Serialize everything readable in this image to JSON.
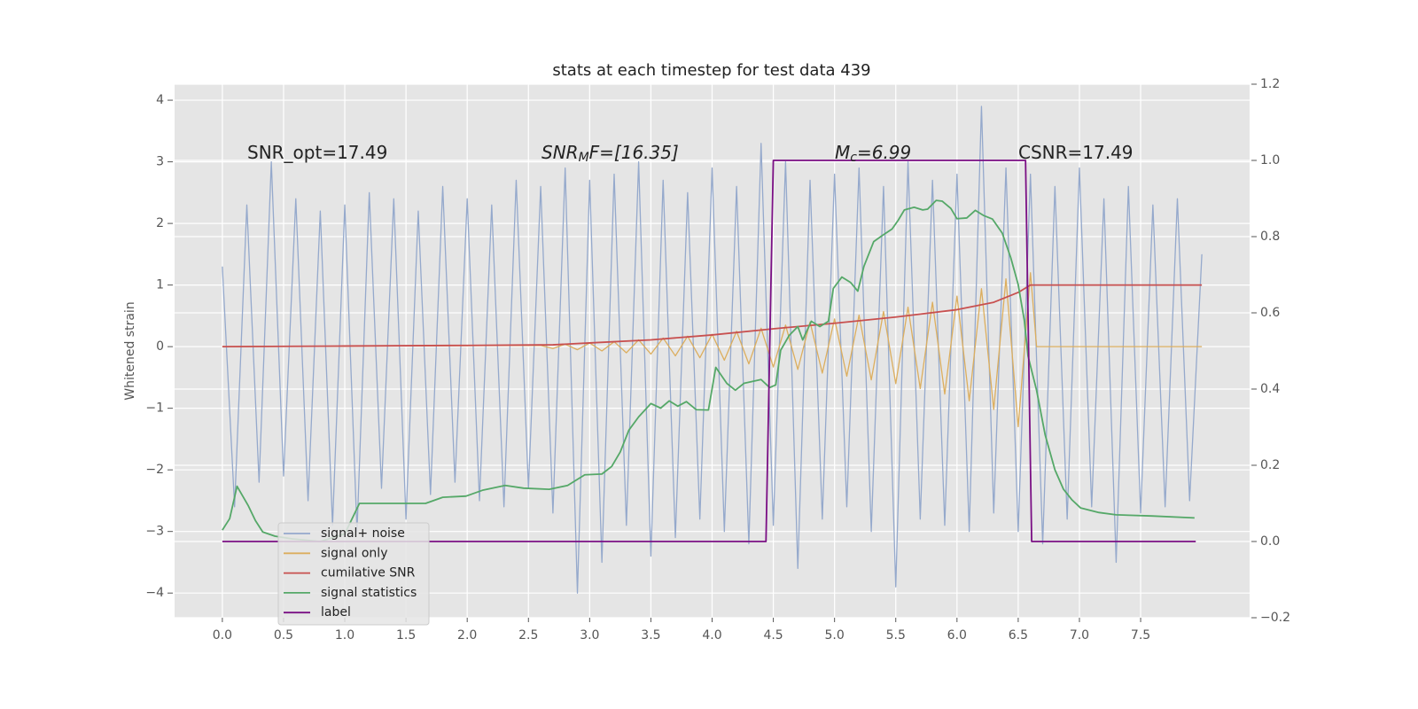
{
  "chart_data": {
    "type": "line",
    "title": "stats at each timestep for test data 439",
    "ylabel": "Whitened strain",
    "annotations": [
      [
        "SNR_opt=17.49"
      ],
      [
        "SNR",
        "M",
        "F=[16.35]"
      ],
      [
        "M",
        "c",
        "=6.99"
      ],
      [
        "CSNR=17.49"
      ]
    ],
    "xlim": [
      -0.39,
      8.39
    ],
    "ylim": [
      -4.4,
      4.26
    ],
    "y2lim": [
      -0.2,
      1.2
    ],
    "xticks": [
      {
        "value": 0,
        "label": "0.0"
      },
      0.5,
      {
        "value": 1,
        "label": "1.0"
      },
      1.5,
      {
        "value": 2,
        "label": "2.0"
      },
      2.5,
      {
        "value": 3,
        "label": "3.0"
      },
      3.5,
      {
        "value": 4,
        "label": "4.0"
      },
      4.5,
      {
        "value": 5,
        "label": "5.0"
      },
      5.5,
      {
        "value": 6,
        "label": "6.0"
      },
      6.5,
      {
        "value": 7,
        "label": "7.0"
      },
      7.5
    ],
    "yticks": [
      {
        "value": -4,
        "label": "−4"
      },
      {
        "value": -3,
        "label": "−3"
      },
      {
        "value": -2,
        "label": "−2"
      },
      {
        "value": -1,
        "label": "−1"
      },
      0,
      1,
      2,
      3,
      4
    ],
    "y2ticks": [
      {
        "value": -0.2,
        "label": "−0.2"
      },
      {
        "value": 0,
        "label": "0.0"
      },
      0.2,
      0.4,
      0.6,
      0.8,
      {
        "value": 1,
        "label": "1.0"
      },
      1.2
    ],
    "grid": true,
    "legend": "lower left",
    "series": [
      {
        "name": "signal+ noise",
        "color": "#95a9cc",
        "x": [
          0,
          0.1,
          0.2,
          0.3,
          0.4,
          0.5,
          0.6,
          0.7,
          0.8,
          0.9,
          1.0,
          1.1,
          1.2,
          1.3,
          1.4,
          1.5,
          1.6,
          1.7,
          1.8,
          1.9,
          2.0,
          2.1,
          2.2,
          2.3,
          2.4,
          2.5,
          2.6,
          2.7,
          2.8,
          2.9,
          3.0,
          3.1,
          3.2,
          3.3,
          3.4,
          3.5,
          3.6,
          3.7,
          3.8,
          3.9,
          4.0,
          4.1,
          4.2,
          4.3,
          4.4,
          4.5,
          4.6,
          4.7,
          4.8,
          4.9,
          5.0,
          5.1,
          5.2,
          5.3,
          5.4,
          5.5,
          5.6,
          5.7,
          5.8,
          5.9,
          6.0,
          6.1,
          6.2,
          6.3,
          6.4,
          6.5,
          6.6,
          6.7,
          6.8,
          6.9,
          7.0,
          7.1,
          7.2,
          7.3,
          7.4,
          7.5,
          7.6,
          7.7,
          7.8,
          7.9,
          8.0
        ],
        "values": [
          1.3,
          -2.6,
          2.3,
          -2.2,
          3.0,
          -2.1,
          2.4,
          -2.5,
          2.2,
          -2.9,
          2.3,
          -3.0,
          2.5,
          -2.3,
          2.4,
          -2.8,
          2.2,
          -2.4,
          2.6,
          -2.2,
          2.4,
          -2.5,
          2.3,
          -2.6,
          2.7,
          -2.3,
          2.6,
          -2.7,
          2.9,
          -4.0,
          2.7,
          -3.5,
          2.8,
          -2.9,
          3.0,
          -3.4,
          2.7,
          -3.1,
          2.5,
          -2.8,
          2.9,
          -3.0,
          2.6,
          -3.2,
          3.3,
          -2.9,
          3.0,
          -3.6,
          2.7,
          -2.8,
          2.8,
          -2.6,
          2.9,
          -3.0,
          2.6,
          -3.9,
          3.0,
          -2.8,
          2.7,
          -2.9,
          2.8,
          -3.0,
          3.9,
          -2.7,
          2.9,
          -3.0,
          2.8,
          -3.2,
          2.6,
          -2.8,
          2.9,
          -2.6,
          2.4,
          -3.5,
          2.6,
          -2.7,
          2.3,
          -2.6,
          2.4,
          -2.5,
          1.5
        ]
      },
      {
        "name": "signal only",
        "color": "#dcae5e",
        "x": [
          0,
          2.6,
          2.7,
          2.8,
          2.9,
          3.0,
          3.1,
          3.2,
          3.3,
          3.4,
          3.5,
          3.6,
          3.7,
          3.8,
          3.9,
          4.0,
          4.1,
          4.2,
          4.3,
          4.4,
          4.5,
          4.6,
          4.7,
          4.8,
          4.9,
          5.0,
          5.1,
          5.2,
          5.3,
          5.4,
          5.5,
          5.6,
          5.7,
          5.8,
          5.9,
          6.0,
          6.1,
          6.2,
          6.3,
          6.4,
          6.5,
          6.6,
          6.65,
          8.0
        ],
        "values": [
          0,
          0.02,
          -0.03,
          0.04,
          -0.05,
          0.06,
          -0.07,
          0.08,
          -0.1,
          0.11,
          -0.12,
          0.14,
          -0.15,
          0.17,
          -0.18,
          0.2,
          -0.22,
          0.25,
          -0.28,
          0.3,
          -0.33,
          0.35,
          -0.37,
          0.4,
          -0.43,
          0.45,
          -0.48,
          0.51,
          -0.54,
          0.57,
          -0.6,
          0.64,
          -0.68,
          0.72,
          -0.77,
          0.82,
          -0.88,
          0.94,
          -1.02,
          1.1,
          -1.3,
          1.2,
          0,
          0
        ]
      },
      {
        "name": "cumilative SNR",
        "color": "#c8504f",
        "x": [
          0,
          1,
          2,
          2.7,
          3,
          3.5,
          4,
          4.5,
          5,
          5.5,
          6,
          6.3,
          6.5,
          6.6,
          8.0
        ],
        "values": [
          0,
          0.01,
          0.02,
          0.03,
          0.06,
          0.11,
          0.19,
          0.29,
          0.38,
          0.48,
          0.6,
          0.72,
          0.88,
          1.0,
          1.0
        ]
      },
      {
        "name": "signal statistics",
        "color": "#55a868",
        "axis": "y2",
        "x": [
          0,
          0.06,
          0.12,
          0.21,
          0.27,
          0.33,
          0.43,
          0.57,
          0.8,
          1.0,
          1.12,
          1.25,
          1.43,
          1.66,
          1.8,
          1.99,
          2.13,
          2.31,
          2.46,
          2.67,
          2.82,
          2.89,
          2.96,
          3.1,
          3.18,
          3.25,
          3.32,
          3.4,
          3.5,
          3.58,
          3.65,
          3.72,
          3.79,
          3.87,
          3.97,
          4.03,
          4.12,
          4.19,
          4.26,
          4.4,
          4.47,
          4.52,
          4.56,
          4.63,
          4.7,
          4.74,
          4.81,
          4.88,
          4.95,
          4.99,
          5.06,
          5.13,
          5.19,
          5.24,
          5.32,
          5.39,
          5.47,
          5.52,
          5.57,
          5.65,
          5.72,
          5.76,
          5.83,
          5.88,
          5.95,
          6.0,
          6.08,
          6.15,
          6.22,
          6.29,
          6.37,
          6.44,
          6.5,
          6.55,
          6.58,
          6.65,
          6.72,
          6.8,
          6.87,
          6.94,
          7.01,
          7.16,
          7.3,
          7.59,
          7.94
        ],
        "values": [
          0.03,
          0.06,
          0.145,
          0.095,
          0.055,
          0.025,
          0.014,
          0.007,
          0.0,
          0.02,
          0.1,
          0.1,
          0.1,
          0.1,
          0.116,
          0.119,
          0.135,
          0.147,
          0.14,
          0.137,
          0.147,
          0.161,
          0.175,
          0.177,
          0.197,
          0.235,
          0.292,
          0.327,
          0.362,
          0.35,
          0.369,
          0.355,
          0.367,
          0.346,
          0.345,
          0.457,
          0.415,
          0.397,
          0.415,
          0.425,
          0.404,
          0.411,
          0.502,
          0.541,
          0.564,
          0.529,
          0.578,
          0.564,
          0.578,
          0.664,
          0.694,
          0.68,
          0.657,
          0.722,
          0.787,
          0.803,
          0.82,
          0.843,
          0.87,
          0.877,
          0.87,
          0.872,
          0.895,
          0.893,
          0.874,
          0.847,
          0.849,
          0.869,
          0.855,
          0.846,
          0.809,
          0.744,
          0.674,
          0.58,
          0.487,
          0.397,
          0.28,
          0.188,
          0.137,
          0.109,
          0.088,
          0.076,
          0.07,
          0.067,
          0.062
        ]
      },
      {
        "name": "label",
        "color": "#7a0f84",
        "axis": "y2",
        "x": [
          0,
          4.44,
          4.5,
          6.56,
          6.61,
          7.95
        ],
        "values": [
          0,
          0,
          1,
          1,
          0,
          0
        ]
      }
    ]
  }
}
